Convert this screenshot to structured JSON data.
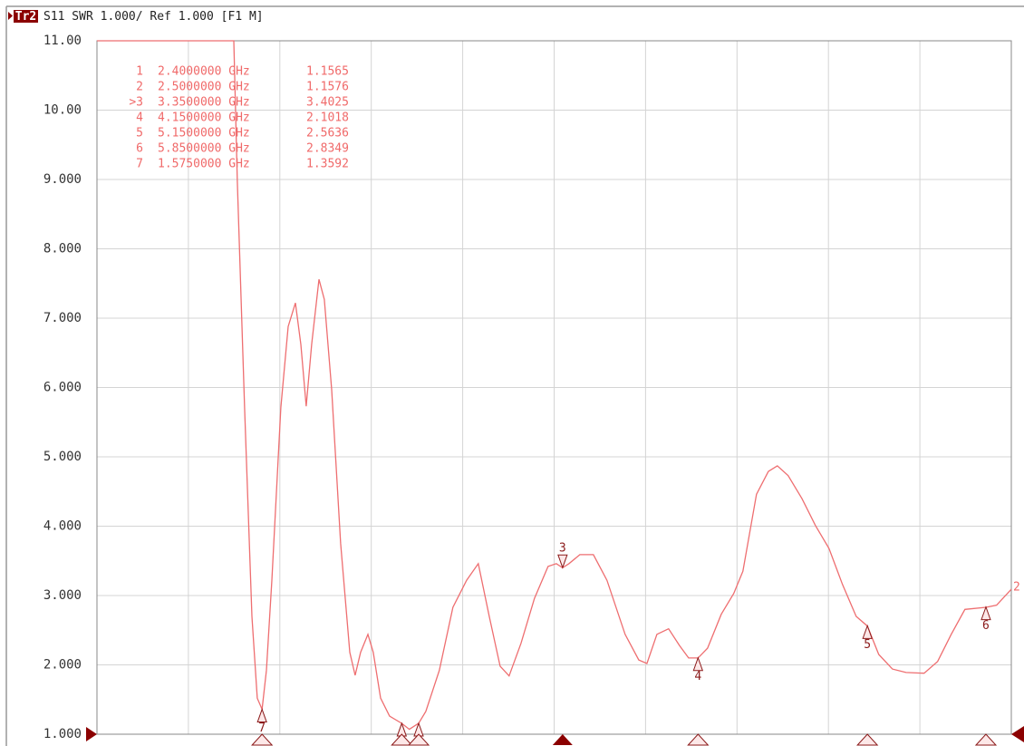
{
  "chart_data": {
    "type": "line",
    "trace_tag": "Tr2",
    "title": "S11 SWR 1.000/ Ref 1.000 [F1 M]",
    "trace_end_label": "2",
    "xlim": [
      0.6,
      6.0
    ],
    "ylim": [
      1,
      11
    ],
    "yticks": [
      {
        "value": 11,
        "label": "11.00"
      },
      {
        "value": 10,
        "label": "10.00"
      },
      {
        "value": 9,
        "label": "9.000"
      },
      {
        "value": 8,
        "label": "8.000"
      },
      {
        "value": 7,
        "label": "7.000"
      },
      {
        "value": 6,
        "label": "6.000"
      },
      {
        "value": 5,
        "label": "5.000"
      },
      {
        "value": 4,
        "label": "4.000"
      },
      {
        "value": 3,
        "label": "3.000"
      },
      {
        "value": 2,
        "label": "2.000"
      },
      {
        "value": 1,
        "label": "1.000"
      }
    ],
    "x_divisions": 10,
    "grid": true,
    "color": "#ee6e70",
    "x": [
      0.6,
      1.408,
      1.429,
      1.472,
      1.515,
      1.547,
      1.575,
      1.601,
      1.633,
      1.686,
      1.729,
      1.772,
      1.804,
      1.836,
      1.868,
      1.911,
      1.943,
      1.986,
      2.039,
      2.093,
      2.125,
      2.157,
      2.2,
      2.232,
      2.275,
      2.328,
      2.4,
      2.445,
      2.5,
      2.542,
      2.622,
      2.702,
      2.783,
      2.852,
      2.917,
      2.981,
      3.034,
      3.104,
      3.184,
      3.264,
      3.313,
      3.35,
      3.388,
      3.452,
      3.532,
      3.612,
      3.719,
      3.8,
      3.848,
      3.907,
      3.976,
      4.04,
      4.094,
      4.15,
      4.206,
      4.287,
      4.361,
      4.415,
      4.495,
      4.565,
      4.618,
      4.682,
      4.763,
      4.843,
      4.923,
      5.003,
      5.084,
      5.15,
      5.217,
      5.298,
      5.378,
      5.485,
      5.565,
      5.645,
      5.726,
      5.85,
      5.913,
      6.0
    ],
    "values": [
      11,
      11,
      8.97,
      5.71,
      2.7,
      1.52,
      1.36,
      1.92,
      3.22,
      5.71,
      6.88,
      7.22,
      6.62,
      5.73,
      6.62,
      7.56,
      7.27,
      5.97,
      3.75,
      2.18,
      1.85,
      2.18,
      2.44,
      2.18,
      1.52,
      1.26,
      1.157,
      1.07,
      1.158,
      1.33,
      1.92,
      2.83,
      3.22,
      3.46,
      2.7,
      1.98,
      1.84,
      2.31,
      2.96,
      3.42,
      3.46,
      3.4,
      3.46,
      3.59,
      3.59,
      3.22,
      2.44,
      2.07,
      2.02,
      2.44,
      2.52,
      2.28,
      2.1,
      2.1,
      2.24,
      2.73,
      3.03,
      3.35,
      4.46,
      4.79,
      4.87,
      4.73,
      4.4,
      4.01,
      3.68,
      3.16,
      2.7,
      2.56,
      2.15,
      1.94,
      1.89,
      1.88,
      2.05,
      2.44,
      2.8,
      2.83,
      2.86,
      3.09
    ],
    "markers": [
      {
        "name": "1",
        "list_label": "1",
        "x": 2.4,
        "x_label": "2.4000000 GHz",
        "value": 1.1565
      },
      {
        "name": "2",
        "list_label": "2",
        "x": 2.5,
        "x_label": "2.5000000 GHz",
        "value": 1.1576
      },
      {
        "name": "3",
        "list_label": ">3",
        "x": 3.35,
        "x_label": "3.3500000 GHz",
        "value": 3.4025,
        "active": true
      },
      {
        "name": "4",
        "list_label": "4",
        "x": 4.15,
        "x_label": "4.1500000 GHz",
        "value": 2.1018
      },
      {
        "name": "5",
        "list_label": "5",
        "x": 5.15,
        "x_label": "5.1500000 GHz",
        "value": 2.5636
      },
      {
        "name": "6",
        "list_label": "6",
        "x": 5.85,
        "x_label": "5.8500000 GHz",
        "value": 2.8349
      },
      {
        "name": "7",
        "list_label": "7",
        "x": 1.575,
        "x_label": "1.5750000 GHz",
        "value": 1.3592
      }
    ]
  }
}
